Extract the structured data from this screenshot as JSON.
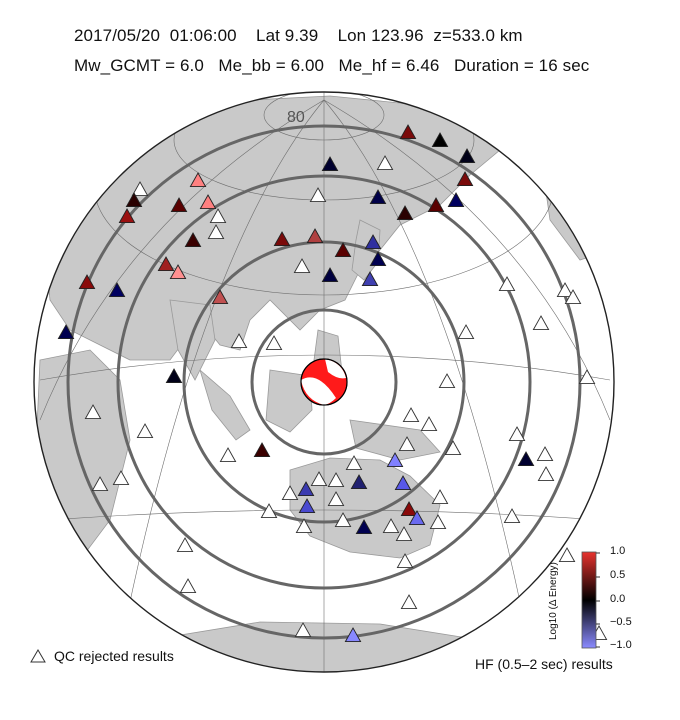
{
  "header": {
    "date": "2017/05/20",
    "time": "01:06:00",
    "lat": "Lat 9.39",
    "lon": "Lon 123.96",
    "depth": "z=533.0 km",
    "mw": "Mw_GCMT = 6.0",
    "me_bb": "Me_bb = 6.00",
    "me_hf": "Me_hf = 6.46",
    "duration": "Duration = 16 sec"
  },
  "map": {
    "projection": "azimuthal equidistant centered on epicenter",
    "latitude_label": "80",
    "epicenter": {
      "lat": 9.39,
      "lon": 123.96
    },
    "distance_rings_deg": [
      30,
      50,
      70,
      90
    ],
    "ocean_color": "#ffffff",
    "land_color": "#c8c8c8"
  },
  "legend": {
    "qc_label": "QC rejected results",
    "hf_label": "HF (0.5–2 sec) results"
  },
  "colorbar": {
    "title": "Log10 (Δ Energy)",
    "ticks": [
      "1.0",
      "0.5",
      "0.0",
      "−0.5",
      "−1.0"
    ],
    "range": [
      -1.0,
      1.0
    ],
    "colors": {
      "high": "#e8332e",
      "mid": "#000000",
      "low": "#8b8bff"
    }
  }
}
